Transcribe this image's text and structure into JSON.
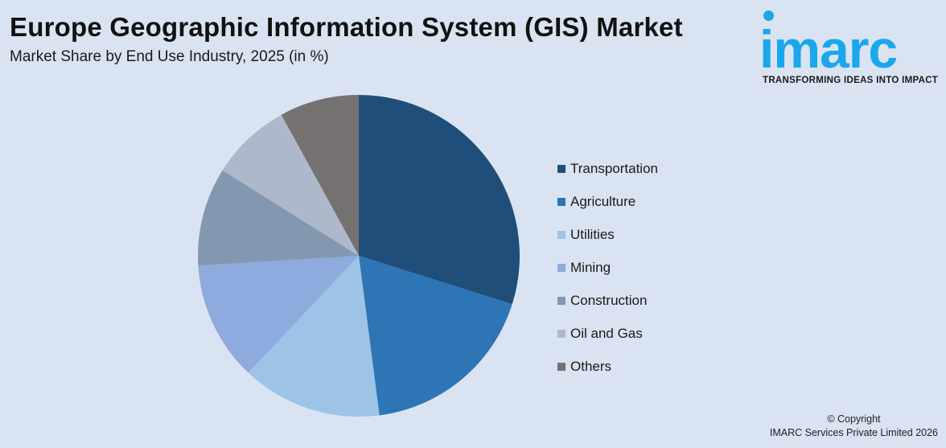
{
  "header": {
    "title": "Europe Geographic Information System (GIS) Market",
    "subtitle": "Market Share by End Use Industry, 2025 (in %)"
  },
  "logo": {
    "wordmark": "imarc",
    "tagline": "TRANSFORMING IDEAS INTO IMPACT",
    "color": "#1aa7ec"
  },
  "footer": {
    "copyright": "© Copyright",
    "company": "IMARC Services Private Limited 2026"
  },
  "legend": {
    "items": [
      {
        "label": "Transportation",
        "color": "#1f4e79"
      },
      {
        "label": "Agriculture",
        "color": "#2e75b6"
      },
      {
        "label": "Utilities",
        "color": "#9dc3e6"
      },
      {
        "label": "Mining",
        "color": "#8faadc"
      },
      {
        "label": "Construction",
        "color": "#8497b0"
      },
      {
        "label": "Oil and Gas",
        "color": "#adb9ca"
      },
      {
        "label": "Others",
        "color": "#767171"
      }
    ]
  },
  "chart_data": {
    "type": "pie",
    "title": "Europe Geographic Information System (GIS) Market",
    "subtitle": "Market Share by End Use Industry, 2025 (in %)",
    "categories": [
      "Transportation",
      "Agriculture",
      "Utilities",
      "Mining",
      "Construction",
      "Oil and Gas",
      "Others"
    ],
    "values": [
      29.9,
      18.1,
      14.1,
      12.0,
      9.9,
      8.1,
      8.0
    ],
    "colors": [
      "#1f4e79",
      "#2e75b6",
      "#9dc3e6",
      "#8faadc",
      "#8497b0",
      "#adb9ca",
      "#767171"
    ],
    "start_angle": "12 o'clock, clockwise",
    "data_labels": false,
    "legend_position": "right"
  }
}
